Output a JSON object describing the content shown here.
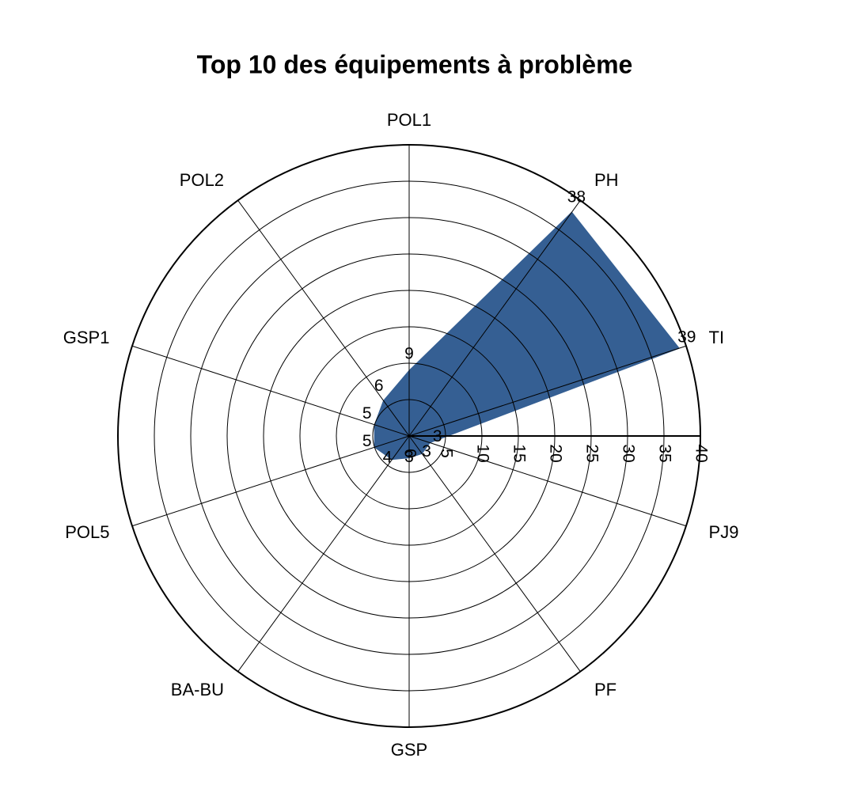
{
  "chart_data": {
    "type": "radar",
    "title": "Top 10 des équipements à problème",
    "categories": [
      "POL1",
      "PH",
      "TI",
      "PJ9",
      "PF",
      "GSP",
      "BA-BU",
      "POL5",
      "GSP1",
      "POL2"
    ],
    "values": [
      9,
      38,
      39,
      3,
      3,
      3,
      4,
      5,
      5,
      6
    ],
    "color": "#355f93",
    "rlim": [
      0,
      40
    ],
    "rticks": [
      0,
      5,
      10,
      15,
      20,
      25,
      30,
      35,
      40
    ],
    "grid": true
  }
}
